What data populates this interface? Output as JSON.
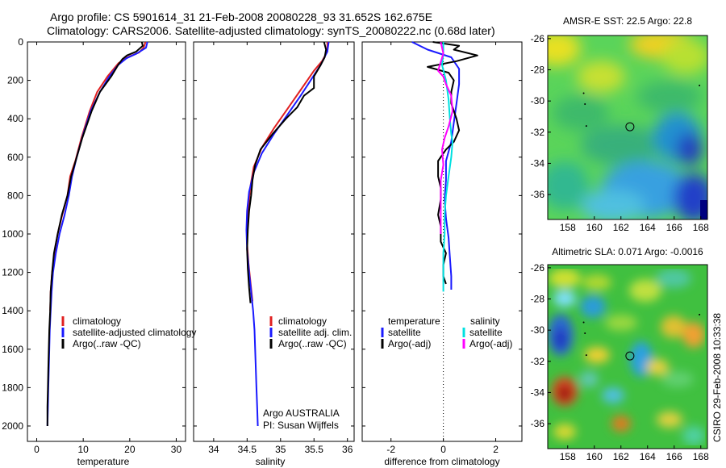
{
  "figure": {
    "title_line1": "Argo profile: CS 5901614_31 21-Feb-2008 20080228_93 31.652S 162.675E",
    "title_line2": "Climatology: CARS2006. Satellite-adjusted climatology: synTS_20080222.nc (0.68d later)",
    "side_label": "CSIRO 29-Feb-2008 10:33:38",
    "colors": {
      "climatology": "#e02020",
      "satellite": "#1a1aff",
      "argo": "#000000",
      "satellite_salinity_diff": "#00e0e0",
      "argo_salinity_diff": "#ff00ff"
    }
  },
  "chart_data": [
    {
      "type": "line",
      "name": "temperature-profile",
      "xlabel": "temperature",
      "ylabel": "",
      "xlim": [
        -2,
        32
      ],
      "ylim": [
        2080,
        0
      ],
      "xticks": [
        0,
        10,
        20,
        30
      ],
      "yticks": [
        0,
        200,
        400,
        600,
        800,
        1000,
        1200,
        1400,
        1600,
        1800,
        2000
      ],
      "legend": [
        "climatology",
        "satellite-adjusted climatology",
        "Argo(..raw -QC)"
      ],
      "legend_position": "lower-right",
      "series": [
        {
          "name": "climatology",
          "color": "#e02020",
          "points": [
            [
              23.4,
              0
            ],
            [
              23.0,
              30
            ],
            [
              22.0,
              55
            ],
            [
              19.5,
              80
            ],
            [
              17.6,
              110
            ],
            [
              15.2,
              180
            ],
            [
              13.0,
              260
            ],
            [
              11.4,
              360
            ],
            [
              9.6,
              500
            ],
            [
              8.3,
              620
            ],
            [
              7.2,
              700
            ],
            [
              6.6,
              800
            ],
            [
              5.5,
              900
            ],
            [
              4.5,
              1000
            ],
            [
              3.8,
              1100
            ],
            [
              3.3,
              1200
            ],
            [
              3.0,
              1300
            ],
            [
              2.9,
              1400
            ]
          ]
        },
        {
          "name": "satellite-adjusted climatology",
          "color": "#1a1aff",
          "points": [
            [
              23.8,
              0
            ],
            [
              23.5,
              30
            ],
            [
              21.5,
              60
            ],
            [
              19.3,
              85
            ],
            [
              17.5,
              120
            ],
            [
              15.6,
              180
            ],
            [
              13.6,
              260
            ],
            [
              11.6,
              360
            ],
            [
              10.0,
              480
            ],
            [
              8.6,
              600
            ],
            [
              7.6,
              700
            ],
            [
              6.9,
              800
            ],
            [
              6.0,
              900
            ],
            [
              4.9,
              1000
            ],
            [
              4.1,
              1100
            ],
            [
              3.5,
              1200
            ],
            [
              3.2,
              1300
            ],
            [
              3.0,
              1400
            ],
            [
              2.8,
              1500
            ],
            [
              2.7,
              1600
            ],
            [
              2.6,
              1700
            ],
            [
              2.5,
              1800
            ],
            [
              2.4,
              1900
            ],
            [
              2.3,
              2000
            ]
          ]
        },
        {
          "name": "Argo(..raw -QC)",
          "color": "#000000",
          "points": [
            [
              22.6,
              0
            ],
            [
              22.8,
              20
            ],
            [
              21.4,
              50
            ],
            [
              19.4,
              70
            ],
            [
              18.4,
              90
            ],
            [
              17.5,
              120
            ],
            [
              16.0,
              180
            ],
            [
              13.6,
              260
            ],
            [
              11.8,
              360
            ],
            [
              9.8,
              500
            ],
            [
              8.6,
              600
            ],
            [
              7.4,
              700
            ],
            [
              6.6,
              800
            ],
            [
              5.4,
              900
            ],
            [
              4.5,
              1000
            ],
            [
              3.7,
              1100
            ],
            [
              3.3,
              1200
            ],
            [
              3.0,
              1300
            ],
            [
              2.9,
              1400
            ],
            [
              2.7,
              1500
            ],
            [
              2.6,
              1600
            ],
            [
              2.5,
              1700
            ],
            [
              2.4,
              1800
            ],
            [
              2.3,
              1900
            ],
            [
              2.3,
              2000
            ]
          ]
        }
      ]
    },
    {
      "type": "line",
      "name": "salinity-profile",
      "xlabel": "salinity",
      "ylabel": "",
      "xlim": [
        33.7,
        36.1
      ],
      "ylim": [
        2080,
        0
      ],
      "xticks": [
        34,
        34.5,
        35,
        35.5,
        36
      ],
      "yticks": [],
      "legend": [
        "climatology",
        "satellite adj. clim.",
        "Argo(..raw -QC)"
      ],
      "legend_position": "lower-right",
      "annotations": [
        "Argo AUSTRALIA",
        "PI: Susan Wijffels"
      ],
      "series": [
        {
          "name": "climatology",
          "color": "#e02020",
          "points": [
            [
              35.7,
              0
            ],
            [
              35.7,
              50
            ],
            [
              35.62,
              100
            ],
            [
              35.5,
              150
            ],
            [
              35.3,
              250
            ],
            [
              35.1,
              350
            ],
            [
              34.9,
              450
            ],
            [
              34.72,
              550
            ],
            [
              34.6,
              650
            ],
            [
              34.55,
              750
            ],
            [
              34.52,
              850
            ],
            [
              34.5,
              950
            ],
            [
              34.5,
              1050
            ],
            [
              34.52,
              1150
            ],
            [
              34.55,
              1250
            ],
            [
              34.58,
              1350
            ]
          ]
        },
        {
          "name": "satellite adj. clim.",
          "color": "#1a1aff",
          "points": [
            [
              35.72,
              0
            ],
            [
              35.7,
              50
            ],
            [
              35.6,
              120
            ],
            [
              35.45,
              200
            ],
            [
              35.3,
              280
            ],
            [
              35.1,
              380
            ],
            [
              34.9,
              480
            ],
            [
              34.72,
              580
            ],
            [
              34.6,
              680
            ],
            [
              34.53,
              780
            ],
            [
              34.5,
              880
            ],
            [
              34.49,
              980
            ],
            [
              34.5,
              1080
            ],
            [
              34.53,
              1200
            ],
            [
              34.56,
              1300
            ],
            [
              34.59,
              1400
            ],
            [
              34.61,
              1500
            ],
            [
              34.62,
              1600
            ],
            [
              34.63,
              1700
            ],
            [
              34.64,
              1800
            ],
            [
              34.65,
              1900
            ],
            [
              34.66,
              2000
            ]
          ]
        },
        {
          "name": "Argo(..raw -QC)",
          "color": "#000000",
          "points": [
            [
              35.65,
              0
            ],
            [
              35.68,
              40
            ],
            [
              35.66,
              80
            ],
            [
              35.6,
              120
            ],
            [
              35.5,
              180
            ],
            [
              35.5,
              240
            ],
            [
              35.35,
              280
            ],
            [
              35.25,
              340
            ],
            [
              35.08,
              400
            ],
            [
              34.88,
              480
            ],
            [
              34.7,
              560
            ],
            [
              34.62,
              640
            ],
            [
              34.58,
              720
            ],
            [
              34.56,
              800
            ],
            [
              34.53,
              880
            ],
            [
              34.51,
              980
            ],
            [
              34.5,
              1080
            ],
            [
              34.51,
              1180
            ],
            [
              34.53,
              1280
            ],
            [
              34.55,
              1360
            ]
          ]
        }
      ]
    },
    {
      "type": "line",
      "name": "difference-profile",
      "xlabel": "difference from climatology",
      "ylabel": "",
      "xlim": [
        -3.1,
        3.0
      ],
      "ylim": [
        2080,
        0
      ],
      "xticks": [
        -2,
        0,
        2
      ],
      "yticks": [],
      "legend_headers": [
        "temperature",
        "salinity"
      ],
      "legend": [
        "satellite",
        "Argo(-adj)",
        "satellite",
        "Argo(-adj)"
      ],
      "legend_position": "lower-center",
      "series": [
        {
          "name": "satellite",
          "group": "temperature",
          "color": "#1a1aff",
          "points": [
            [
              -1.2,
              0
            ],
            [
              -0.6,
              40
            ],
            [
              0.3,
              80
            ],
            [
              0.6,
              140
            ],
            [
              0.6,
              220
            ],
            [
              0.5,
              320
            ],
            [
              0.4,
              420
            ],
            [
              0.3,
              520
            ],
            [
              0.1,
              620
            ],
            [
              0.1,
              720
            ],
            [
              0.05,
              820
            ],
            [
              0.1,
              920
            ],
            [
              0.2,
              1020
            ],
            [
              0.25,
              1120
            ],
            [
              0.3,
              1220
            ],
            [
              0.3,
              1290
            ]
          ]
        },
        {
          "name": "Argo(-adj)",
          "group": "temperature",
          "color": "#000000",
          "points": [
            [
              -0.4,
              0
            ],
            [
              0.6,
              20
            ],
            [
              0.4,
              40
            ],
            [
              1.3,
              70
            ],
            [
              0.5,
              100
            ],
            [
              -0.6,
              130
            ],
            [
              0.2,
              160
            ],
            [
              0.4,
              200
            ],
            [
              0.3,
              260
            ],
            [
              0.3,
              320
            ],
            [
              0.5,
              400
            ],
            [
              0.6,
              460
            ],
            [
              0.4,
              520
            ],
            [
              0.1,
              560
            ],
            [
              -0.2,
              620
            ],
            [
              -0.2,
              700
            ],
            [
              -0.1,
              760
            ],
            [
              -0.1,
              820
            ],
            [
              -0.2,
              900
            ],
            [
              -0.1,
              960
            ],
            [
              -0.1,
              1040
            ],
            [
              0.1,
              1100
            ],
            [
              0.0,
              1160
            ],
            [
              0.0,
              1220
            ],
            [
              0.1,
              1260
            ]
          ]
        },
        {
          "name": "satellite",
          "group": "salinity",
          "color": "#00e0e0",
          "points": [
            [
              0.0,
              0
            ],
            [
              0.0,
              60
            ],
            [
              -0.05,
              120
            ],
            [
              0.1,
              200
            ],
            [
              0.2,
              300
            ],
            [
              0.25,
              400
            ],
            [
              0.3,
              480
            ],
            [
              0.35,
              520
            ],
            [
              0.3,
              600
            ],
            [
              0.2,
              700
            ],
            [
              0.1,
              800
            ],
            [
              0.05,
              900
            ],
            [
              0.05,
              1000
            ],
            [
              0.0,
              1100
            ],
            [
              0.0,
              1200
            ],
            [
              0.0,
              1300
            ]
          ]
        },
        {
          "name": "Argo(-adj)",
          "group": "salinity",
          "color": "#ff00ff",
          "points": [
            [
              -0.1,
              0
            ],
            [
              0.0,
              60
            ],
            [
              -0.2,
              150
            ],
            [
              0.0,
              180
            ],
            [
              0.1,
              220
            ],
            [
              0.3,
              280
            ],
            [
              0.35,
              360
            ],
            [
              0.2,
              440
            ],
            [
              0.05,
              500
            ],
            [
              -0.05,
              560
            ],
            [
              0.0,
              640
            ],
            [
              -0.1,
              720
            ],
            [
              -0.1,
              800
            ],
            [
              -0.1,
              880
            ],
            [
              -0.1,
              960
            ],
            [
              -0.1,
              1000
            ]
          ]
        }
      ]
    },
    {
      "type": "heatmap",
      "name": "sst-map",
      "title": "AMSR-E SST: 22.5 Argo: 22.8",
      "xlim": [
        156.5,
        168.5
      ],
      "ylim": [
        -37.6,
        -25.8
      ],
      "xticks": [
        158,
        160,
        162,
        164,
        166,
        168
      ],
      "yticks": [
        -26,
        -28,
        -30,
        -32,
        -34,
        -36
      ],
      "marker": {
        "lon": 162.675,
        "lat": -31.652
      }
    },
    {
      "type": "heatmap",
      "name": "sla-map",
      "title": "Altimetric SLA: 0.071 Argo: -0.0016",
      "xlim": [
        156.5,
        168.5
      ],
      "ylim": [
        -37.6,
        -25.8
      ],
      "xticks": [
        158,
        160,
        162,
        164,
        166,
        168
      ],
      "yticks": [
        -26,
        -28,
        -30,
        -32,
        -34,
        -36
      ],
      "marker": {
        "lon": 162.675,
        "lat": -31.652
      }
    }
  ]
}
